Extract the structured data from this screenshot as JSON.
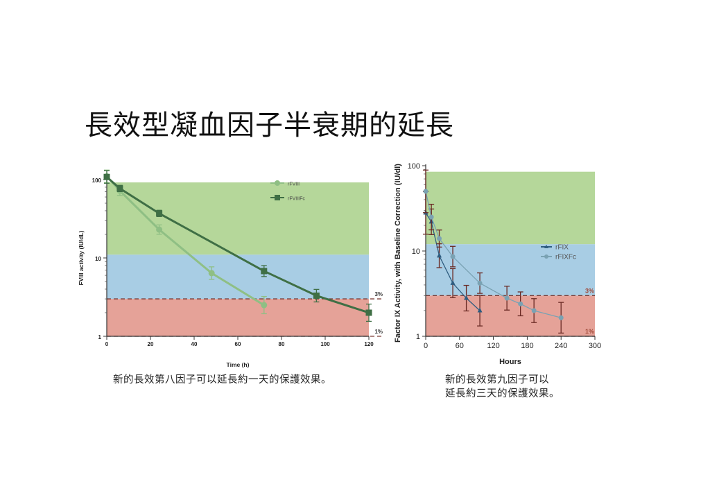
{
  "slide": {
    "title": "長效型凝血因子半衰期的延長",
    "caption_left": "新的長效第八因子可以延長約一天的保護效果。",
    "caption_right_line1": "新的長效第九因子可以",
    "caption_right_line2": "延長約三天的保護效果。"
  },
  "chart_data": [
    {
      "type": "line",
      "xlabel": "Time (h)",
      "ylabel": "FVIII activity (IU/dL)",
      "y_scale": "log",
      "xlim": [
        0,
        120
      ],
      "ylim": [
        1,
        100
      ],
      "x_ticks": [
        "0",
        "20",
        "40",
        "60",
        "80",
        "100",
        "120"
      ],
      "y_ticks": [
        "1",
        "10",
        "100"
      ],
      "bands": [
        {
          "from": 11,
          "to": 92,
          "color": "#b5d79a"
        },
        {
          "from": 3,
          "to": 11,
          "color": "#a8cde4"
        },
        {
          "from": 1,
          "to": 3,
          "color": "#e5a298"
        }
      ],
      "reference_lines": [
        {
          "value": 3,
          "label": "3%"
        },
        {
          "value": 1,
          "label": "1%"
        }
      ],
      "legend_position": "top-center",
      "series": [
        {
          "name": "rFVIII",
          "marker": "circle",
          "color": "#8fbf84",
          "x": [
            0,
            6,
            24,
            48,
            72
          ],
          "y": [
            110,
            72,
            23,
            6.4,
            2.5
          ],
          "err": [
            0.08,
            0.06,
            0.06,
            0.08,
            0.11
          ]
        },
        {
          "name": "rFVIIIFc",
          "marker": "square",
          "color": "#3f6f45",
          "x": [
            0,
            6,
            24,
            72,
            96,
            120
          ],
          "y": [
            108,
            77,
            37,
            6.8,
            3.3,
            2.0
          ],
          "err": [
            0.08,
            0.04,
            0.04,
            0.07,
            0.08,
            0.11
          ]
        }
      ]
    },
    {
      "type": "line",
      "xlabel": "Hours",
      "ylabel": "Factor IX Activity, with Baseline Correction (IU/dl)",
      "y_scale": "log",
      "xlim": [
        0,
        300
      ],
      "ylim": [
        1,
        100
      ],
      "x_ticks": [
        "0",
        "60",
        "120",
        "180",
        "240",
        "300"
      ],
      "y_ticks": [
        "1",
        "10",
        "100"
      ],
      "bands": [
        {
          "from": 12,
          "to": 85,
          "color": "#b5d79a"
        },
        {
          "from": 3,
          "to": 12,
          "color": "#a8cde4"
        },
        {
          "from": 1,
          "to": 3,
          "color": "#e5a298"
        }
      ],
      "reference_lines": [
        {
          "value": 3,
          "label": "3%"
        },
        {
          "value": 1,
          "label": "1%"
        }
      ],
      "legend_position": "center-right",
      "series": [
        {
          "name": "rFIX",
          "marker": "triangle",
          "color": "#2f5d80",
          "x": [
            0,
            10,
            24,
            48,
            72,
            96
          ],
          "y": [
            28,
            22,
            8.8,
            4.2,
            2.8,
            2.0
          ],
          "err": [
            0.25,
            0.15,
            0.14,
            0.17,
            0.15,
            0.18
          ]
        },
        {
          "name": "rFIXFc",
          "marker": "circle",
          "color": "#7aa2b3",
          "x": [
            0,
            10,
            24,
            48,
            96,
            144,
            168,
            192,
            240
          ],
          "y": [
            50,
            25,
            14,
            8.6,
            4.2,
            2.8,
            2.4,
            2.0,
            1.65
          ],
          "err": [
            0.25,
            0.15,
            0.1,
            0.12,
            0.12,
            0.14,
            0.14,
            0.14,
            0.18
          ]
        }
      ]
    }
  ]
}
